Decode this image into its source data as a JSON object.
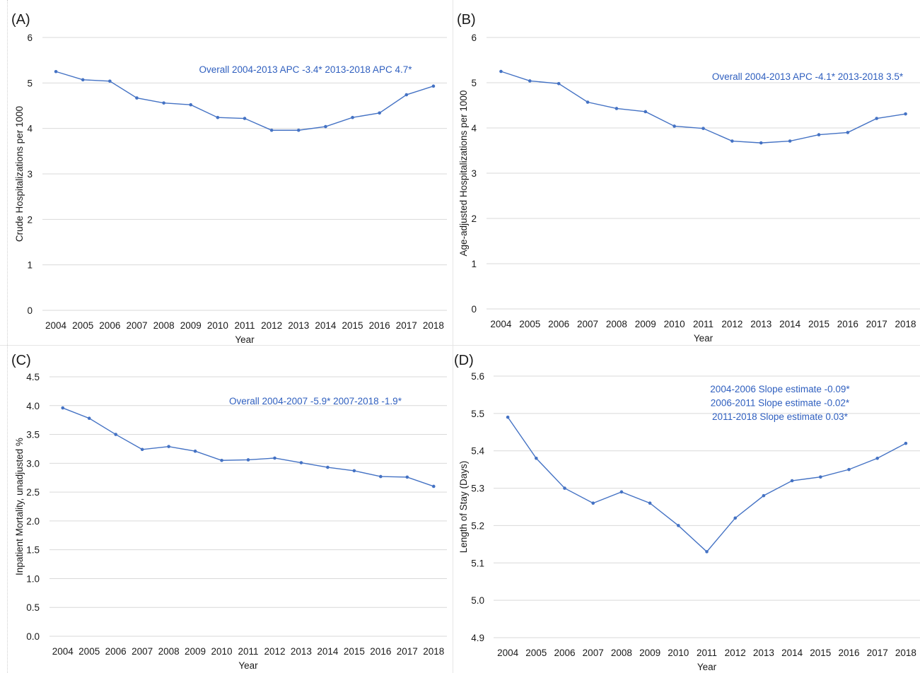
{
  "figure": {
    "line_color": "#4472C4",
    "annotation_color": "#2f5fbf",
    "grid_color": "#d9d9d9",
    "text_color": "#1a1a1a"
  },
  "chart_data": [
    {
      "type": "line",
      "panel_label": "(A)",
      "x": [
        2004,
        2005,
        2006,
        2007,
        2008,
        2009,
        2010,
        2011,
        2012,
        2013,
        2014,
        2015,
        2016,
        2017,
        2018
      ],
      "series": [
        {
          "values": [
            5.25,
            5.07,
            5.04,
            4.67,
            4.56,
            4.52,
            4.24,
            4.22,
            3.96,
            3.96,
            4.04,
            4.24,
            4.34,
            4.74,
            4.93
          ]
        }
      ],
      "xlabel": "Year",
      "ylabel": "Crude Hospitalizations per 1000",
      "ylim": [
        0,
        6
      ],
      "yticks": [
        "0",
        "1",
        "2",
        "3",
        "4",
        "5",
        "6"
      ],
      "annotations": [
        "Overall 2004-2013 APC -3.4* 2013-2018 APC 4.7*"
      ],
      "grid": true
    },
    {
      "type": "line",
      "panel_label": "(B)",
      "x": [
        2004,
        2005,
        2006,
        2007,
        2008,
        2009,
        2010,
        2011,
        2012,
        2013,
        2014,
        2015,
        2016,
        2017,
        2018
      ],
      "series": [
        {
          "values": [
            5.25,
            5.04,
            4.98,
            4.57,
            4.43,
            4.36,
            4.04,
            3.99,
            3.71,
            3.67,
            3.71,
            3.85,
            3.9,
            4.21,
            4.31
          ]
        }
      ],
      "xlabel": "Year",
      "ylabel": "Age-adjusted Hospitalizations per 1000",
      "ylim": [
        0,
        6
      ],
      "yticks": [
        "0",
        "1",
        "2",
        "3",
        "4",
        "5",
        "6"
      ],
      "annotations": [
        "Overall 2004-2013 APC -4.1* 2013-2018 3.5*"
      ],
      "grid": true
    },
    {
      "type": "line",
      "panel_label": "(C)",
      "x": [
        2004,
        2005,
        2006,
        2007,
        2008,
        2009,
        2010,
        2011,
        2012,
        2013,
        2014,
        2015,
        2016,
        2017,
        2018
      ],
      "series": [
        {
          "values": [
            3.96,
            3.78,
            3.5,
            3.24,
            3.29,
            3.21,
            3.05,
            3.06,
            3.09,
            3.01,
            2.93,
            2.87,
            2.77,
            2.76,
            2.6
          ]
        }
      ],
      "xlabel": "Year",
      "ylabel": "Inpatient Mortality, unadjusted %",
      "ylim": [
        0,
        4.5
      ],
      "yticks": [
        "0.0",
        "0.5",
        "1.0",
        "1.5",
        "2.0",
        "2.5",
        "3.0",
        "3.5",
        "4.0",
        "4.5"
      ],
      "annotations": [
        "Overall 2004-2007 -5.9* 2007-2018 -1.9*"
      ],
      "grid": true
    },
    {
      "type": "line",
      "panel_label": "(D)",
      "x": [
        2004,
        2005,
        2006,
        2007,
        2008,
        2009,
        2010,
        2011,
        2012,
        2013,
        2014,
        2015,
        2016,
        2017,
        2018
      ],
      "series": [
        {
          "values": [
            5.49,
            5.38,
            5.3,
            5.26,
            5.29,
            5.26,
            5.2,
            5.13,
            5.22,
            5.28,
            5.32,
            5.33,
            5.35,
            5.38,
            5.42
          ]
        }
      ],
      "xlabel": "Year",
      "ylabel": "Length of Stay (Days)",
      "ylim": [
        4.9,
        5.6
      ],
      "yticks": [
        "4.9",
        "5.0",
        "5.1",
        "5.2",
        "5.3",
        "5.4",
        "5.5",
        "5.6"
      ],
      "annotations": [
        "2004-2006 Slope estimate -0.09*",
        "2006-2011 Slope estimate -0.02*",
        "2011-2018 Slope estimate 0.03*"
      ],
      "grid": true
    }
  ]
}
